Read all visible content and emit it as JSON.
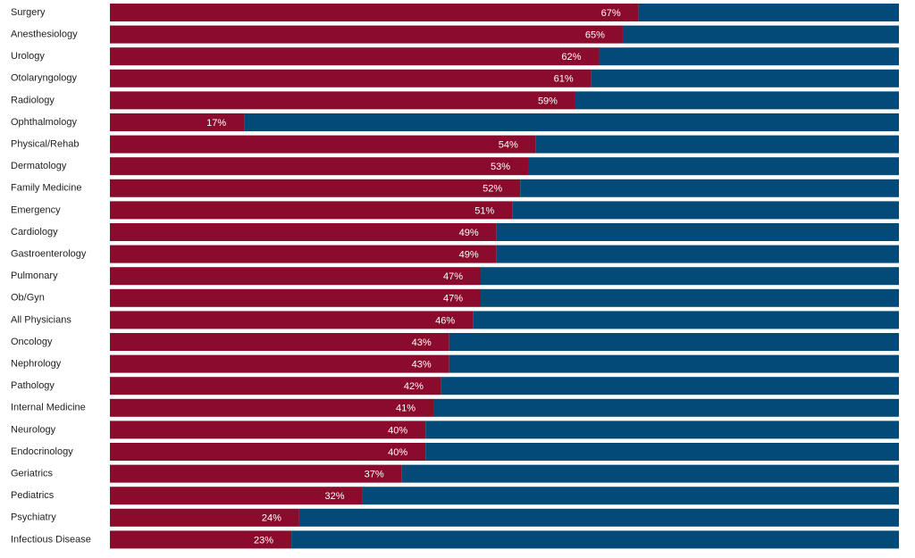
{
  "chart_data": {
    "type": "stacked-bar-horizontal",
    "categories": [
      "Surgery",
      "Anesthesiology",
      "Urology",
      "Otolaryngology",
      "Radiology",
      "Ophthalmology",
      "Physical/Rehab",
      "Dermatology",
      "Family Medicine",
      "Emergency",
      "Cardiology",
      "Gastroenterology",
      "Pulmonary",
      "Ob/Gyn",
      "All Physicians",
      "Oncology",
      "Nephrology",
      "Pathology",
      "Internal Medicine",
      "Neurology",
      "Endocrinology",
      "Geriatrics",
      "Pediatrics",
      "Psychiatry",
      "Infectious Disease"
    ],
    "series": [
      {
        "color": "#8a0b2b",
        "values": [
          67,
          65,
          62,
          61,
          59,
          17,
          54,
          53,
          52,
          51,
          49,
          49,
          47,
          47,
          46,
          43,
          43,
          42,
          41,
          40,
          40,
          37,
          32,
          24,
          23
        ],
        "value_labels": [
          "67%",
          "65%",
          "62%",
          "61%",
          "59%",
          "17%",
          "54%",
          "53%",
          "52%",
          "51%",
          "49%",
          "49%",
          "47%",
          "47%",
          "46%",
          "43%",
          "43%",
          "42%",
          "41%",
          "40%",
          "40%",
          "37%",
          "32%",
          "24%",
          "23%"
        ]
      },
      {
        "color": "#044a79",
        "values": [
          33,
          35,
          38,
          39,
          41,
          83,
          46,
          47,
          48,
          49,
          51,
          51,
          53,
          53,
          54,
          57,
          57,
          58,
          59,
          60,
          60,
          63,
          68,
          76,
          77
        ]
      }
    ],
    "xlim": [
      0,
      100
    ]
  }
}
